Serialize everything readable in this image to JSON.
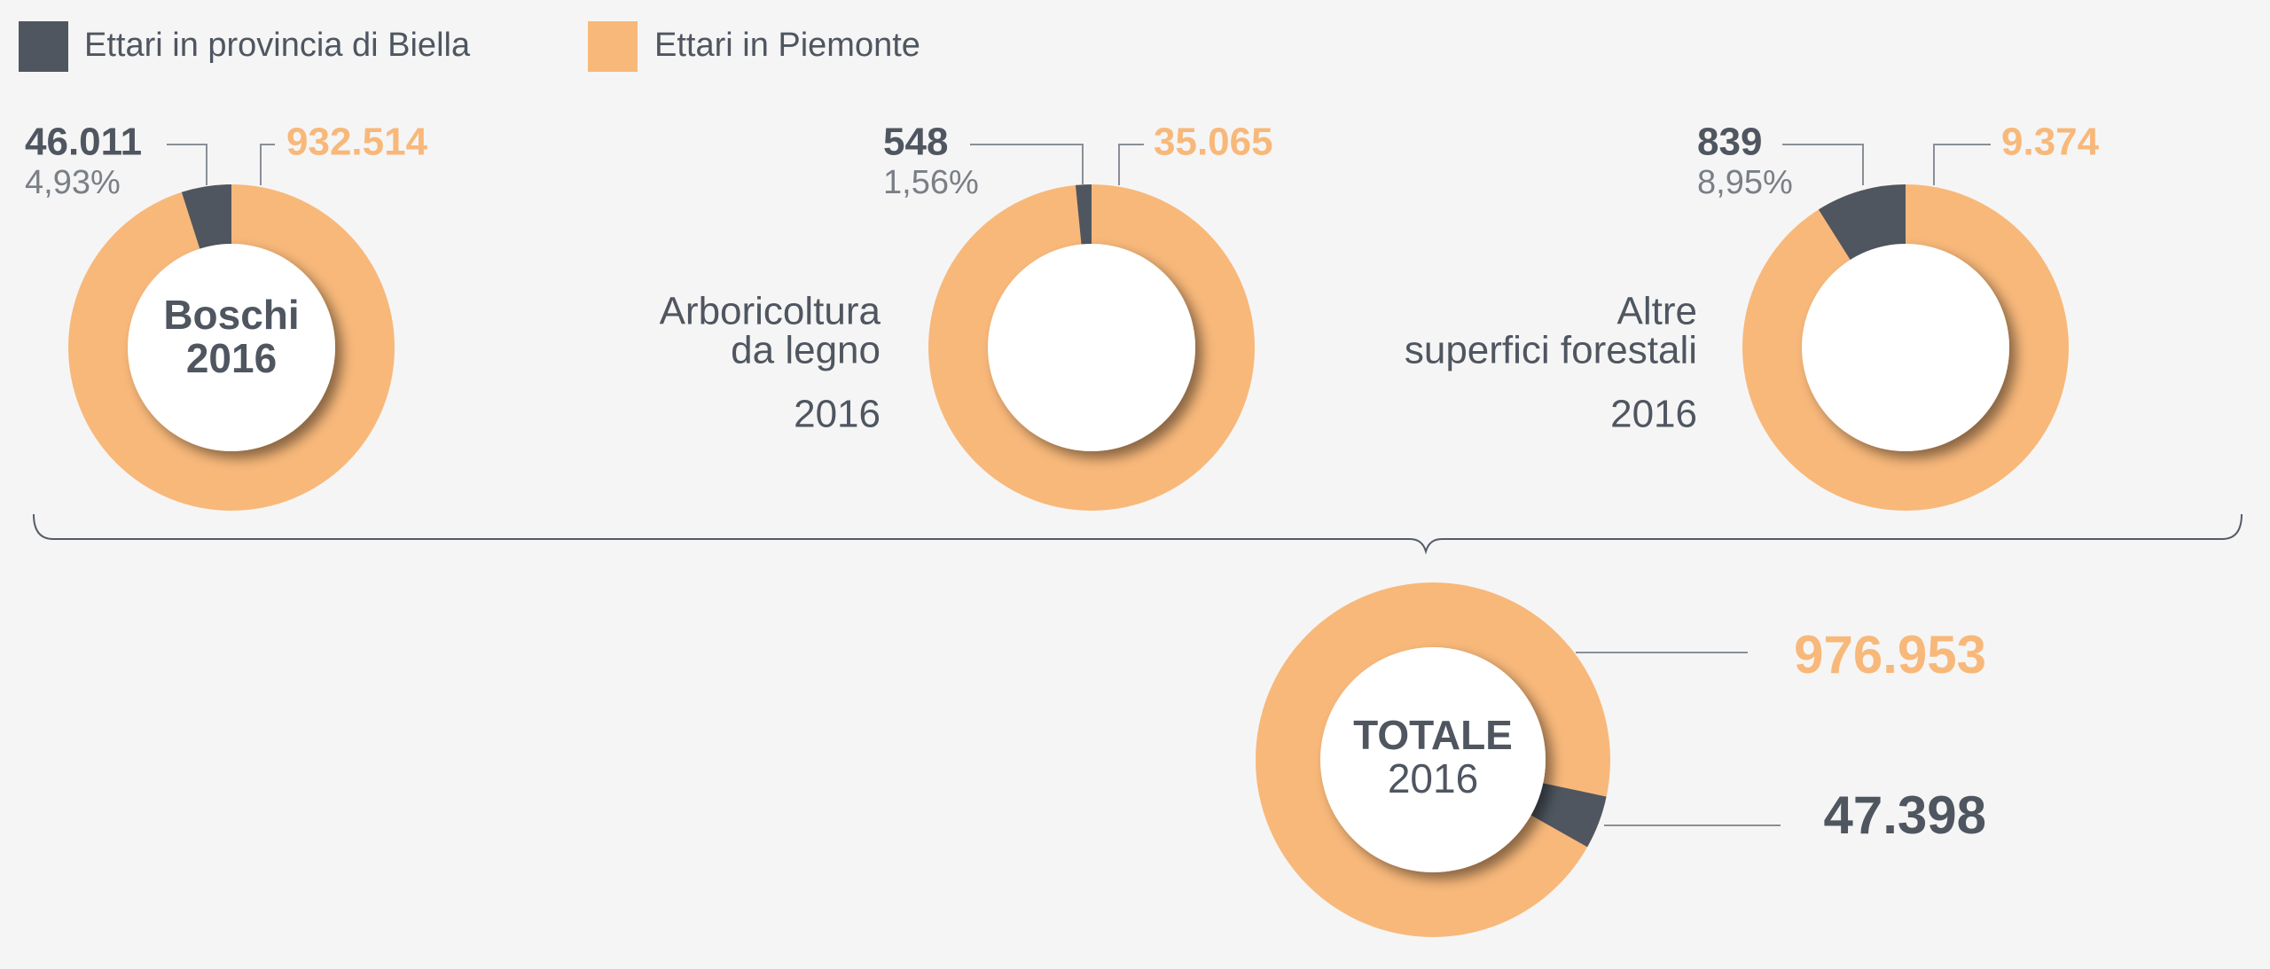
{
  "chart_data": [
    {
      "type": "pie",
      "donut": true,
      "title_lines": [
        "Boschi"
      ],
      "year": "2016",
      "annotation": "4,93%",
      "series": [
        {
          "name": "Ettari in provincia di Biella",
          "color": "#4f5660",
          "values": [
            46011
          ],
          "value_labels": [
            "46.011"
          ]
        },
        {
          "name": "Ettari in Piemonte",
          "color": "#f8b87a",
          "values": [
            932514
          ],
          "value_labels": [
            "932.514"
          ]
        }
      ]
    },
    {
      "type": "pie",
      "donut": true,
      "title_lines": [
        "Arboricoltura",
        "da legno"
      ],
      "year": "2016",
      "annotation": "1,56%",
      "series": [
        {
          "name": "Ettari in provincia di Biella",
          "color": "#4f5660",
          "values": [
            548
          ],
          "value_labels": [
            "548"
          ]
        },
        {
          "name": "Ettari in Piemonte",
          "color": "#f8b87a",
          "values": [
            35065
          ],
          "value_labels": [
            "35.065"
          ]
        }
      ]
    },
    {
      "type": "pie",
      "donut": true,
      "title_lines": [
        "Altre",
        "superfici forestali"
      ],
      "year": "2016",
      "annotation": "8,95%",
      "series": [
        {
          "name": "Ettari in provincia di Biella",
          "color": "#4f5660",
          "values": [
            839
          ],
          "value_labels": [
            "839"
          ]
        },
        {
          "name": "Ettari in Piemonte",
          "color": "#f8b87a",
          "values": [
            9374
          ],
          "value_labels": [
            "9.374"
          ]
        }
      ]
    },
    {
      "type": "pie",
      "donut": true,
      "title_lines": [
        "TOTALE"
      ],
      "year": "2016",
      "series": [
        {
          "name": "Ettari in provincia di Biella",
          "color": "#4f5660",
          "values": [
            47398
          ],
          "value_labels": [
            "47.398"
          ]
        },
        {
          "name": "Ettari in Piemonte",
          "color": "#f8b87a",
          "values": [
            976953
          ],
          "value_labels": [
            "976.953"
          ]
        }
      ]
    }
  ]
}
